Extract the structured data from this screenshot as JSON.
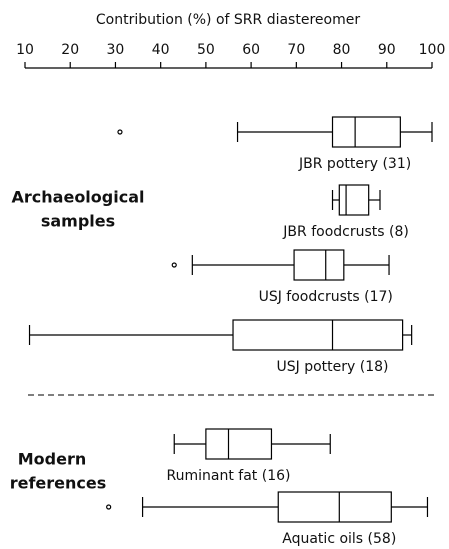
{
  "chart_data": {
    "type": "boxplot",
    "xlabel": "Contribution (%) of SRR diastereomer",
    "xlim": [
      10,
      100
    ],
    "xticks": [
      10,
      20,
      30,
      40,
      50,
      60,
      70,
      80,
      90,
      100
    ],
    "categories": [
      "JBR pottery (31)",
      "JBR foodcrusts (8)",
      "USJ foodcrusts (17)",
      "USJ pottery (18)",
      "Ruminant fat (16)",
      "Aquatic oils (58)"
    ],
    "boxes": [
      {
        "whisker_low": 57,
        "q1": 78,
        "median": 83,
        "q3": 93,
        "whisker_high": 100,
        "outliers": [
          31
        ]
      },
      {
        "whisker_low": 78,
        "q1": 79.5,
        "median": 81,
        "q3": 86,
        "whisker_high": 88.5,
        "outliers": []
      },
      {
        "whisker_low": 47,
        "q1": 69.5,
        "median": 76.5,
        "q3": 80.5,
        "whisker_high": 90.5,
        "outliers": [
          43
        ]
      },
      {
        "whisker_low": 11,
        "q1": 56,
        "median": 78,
        "q3": 93.5,
        "whisker_high": 95.5,
        "outliers": []
      },
      {
        "whisker_low": 43,
        "q1": 50,
        "median": 55,
        "q3": 64.5,
        "whisker_high": 77.5,
        "outliers": []
      },
      {
        "whisker_low": 36,
        "q1": 66,
        "median": 79.5,
        "q3": 91,
        "whisker_high": 99,
        "outliers": [
          28.5
        ]
      }
    ],
    "groups": [
      [
        "Archaeological",
        "samples"
      ],
      [
        "Modern",
        "references"
      ]
    ],
    "color": "#000000"
  }
}
